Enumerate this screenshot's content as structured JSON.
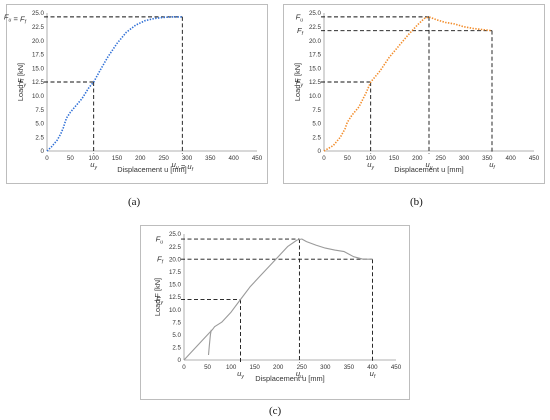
{
  "chart_data": [
    {
      "type": "line",
      "xlabel": "Displacement u [mm]",
      "ylabel": "Load F [kN]",
      "xlim": [
        0,
        450
      ],
      "ylim": [
        0,
        25
      ],
      "xticks": [
        "0",
        "50",
        "100",
        "150",
        "200",
        "250",
        "300",
        "350",
        "400",
        "450"
      ],
      "yticks": [
        "0",
        "2.5",
        "5.0",
        "7.5",
        "10.0",
        "12.5",
        "15.0",
        "17.5",
        "20.0",
        "22.5",
        "25.0"
      ],
      "line_color": "#2f6fd6",
      "line_style": "dotted",
      "series": [
        {
          "x": [
            0,
            10,
            22,
            30,
            35,
            38,
            42,
            50,
            60,
            75,
            90,
            100,
            115,
            130,
            150,
            170,
            190,
            210,
            230,
            250,
            270,
            290
          ],
          "y": [
            0,
            0.8,
            2.0,
            3.2,
            4.2,
            5.0,
            6.0,
            7.0,
            8.0,
            9.5,
            11.5,
            12.5,
            14.8,
            17.0,
            19.5,
            21.5,
            22.8,
            23.6,
            24.0,
            24.2,
            24.3,
            24.3
          ]
        }
      ],
      "refs": {
        "Fy": 12.5,
        "uy": 100,
        "Fu": 24.3,
        "uu": 290
      },
      "markers": {
        "y": [
          {
            "value": 24.3,
            "parts": [
              {
                "t": "F",
                "s": "u"
              },
              {
                "t": " = F",
                "s": ""
              },
              {
                "t": "",
                "s": "f"
              }
            ]
          },
          {
            "value": 12.5,
            "parts": [
              {
                "t": "F",
                "s": "y"
              }
            ]
          }
        ],
        "x": [
          {
            "value": 100,
            "parts": [
              {
                "t": "u",
                "s": "y"
              }
            ]
          },
          {
            "value": 290,
            "parts": [
              {
                "t": "u",
                "s": "u"
              },
              {
                "t": " = u",
                "s": "f"
              }
            ]
          }
        ]
      },
      "caption": "(a)"
    },
    {
      "type": "line",
      "xlabel": "Displacement u [mm]",
      "ylabel": "Load F [kN]",
      "xlim": [
        0,
        450
      ],
      "ylim": [
        0,
        25
      ],
      "xticks": [
        "0",
        "50",
        "100",
        "150",
        "200",
        "250",
        "300",
        "350",
        "400",
        "450"
      ],
      "yticks": [
        "0",
        "2.5",
        "5.0",
        "7.5",
        "10.0",
        "12.5",
        "15.0",
        "17.5",
        "20.0",
        "22.5",
        "25.0"
      ],
      "line_color": "#f28c2a",
      "line_style": "dotted",
      "series": [
        {
          "x": [
            0,
            20,
            35,
            45,
            50,
            60,
            75,
            90,
            100,
            120,
            140,
            160,
            180,
            200,
            215,
            225,
            240,
            260,
            280,
            300,
            320,
            340,
            360
          ],
          "y": [
            0,
            1.0,
            2.5,
            4.0,
            5.2,
            6.5,
            8.0,
            10.5,
            12.5,
            14.5,
            17.0,
            19.0,
            21.0,
            22.8,
            24.0,
            24.3,
            23.8,
            23.3,
            23.0,
            22.5,
            22.2,
            22.0,
            21.8
          ]
        }
      ],
      "refs": {
        "Fy": 12.5,
        "uy": 100,
        "Fu": 24.3,
        "uu": 225,
        "Ff": 21.8,
        "uf": 360
      },
      "markers": {
        "y": [
          {
            "value": 24.3,
            "parts": [
              {
                "t": "F",
                "s": "u"
              }
            ]
          },
          {
            "value": 21.8,
            "parts": [
              {
                "t": "F",
                "s": "f"
              }
            ]
          },
          {
            "value": 12.5,
            "parts": [
              {
                "t": "F",
                "s": "y"
              }
            ]
          }
        ],
        "x": [
          {
            "value": 100,
            "parts": [
              {
                "t": "u",
                "s": "y"
              }
            ]
          },
          {
            "value": 225,
            "parts": [
              {
                "t": "u",
                "s": "u"
              }
            ]
          },
          {
            "value": 360,
            "parts": [
              {
                "t": "u",
                "s": "f"
              }
            ]
          }
        ]
      },
      "caption": "(b)"
    },
    {
      "type": "line",
      "xlabel": "Displacement u [mm]",
      "ylabel": "Load F [kN]",
      "xlim": [
        0,
        450
      ],
      "ylim": [
        0,
        25
      ],
      "xticks": [
        "0",
        "50",
        "100",
        "150",
        "200",
        "250",
        "300",
        "350",
        "400",
        "450"
      ],
      "yticks": [
        "0",
        "2.5",
        "5.0",
        "7.5",
        "10.0",
        "12.5",
        "15.0",
        "17.5",
        "20.0",
        "22.5",
        "25.0"
      ],
      "line_color": "#9a9a9a",
      "line_style": "solid",
      "series": [
        {
          "x": [
            0,
            15,
            30,
            45,
            55,
            60,
            65,
            80,
            100,
            120,
            140,
            160,
            180,
            200,
            220,
            240,
            250,
            260,
            280,
            300,
            320,
            340,
            360,
            380,
            400
          ],
          "y": [
            0,
            1.5,
            3.0,
            4.5,
            5.5,
            6.0,
            6.6,
            7.5,
            9.5,
            12.0,
            14.5,
            16.5,
            18.5,
            20.5,
            22.5,
            23.8,
            24.0,
            23.5,
            22.8,
            22.2,
            21.8,
            21.5,
            20.5,
            20.0,
            20.0
          ]
        },
        {
          "x": [
            52,
            54,
            56,
            58
          ],
          "y": [
            1.0,
            3.0,
            5.0,
            6.0
          ]
        }
      ],
      "refs": {
        "Fy": 12.0,
        "uy": 120,
        "Fu": 24.0,
        "uu": 245,
        "Ff": 20.0,
        "uf": 400
      },
      "markers": {
        "y": [
          {
            "value": 24.0,
            "parts": [
              {
                "t": "F",
                "s": "u"
              }
            ]
          },
          {
            "value": 20.0,
            "parts": [
              {
                "t": "F",
                "s": "f"
              }
            ]
          },
          {
            "value": 12.0,
            "parts": [
              {
                "t": "F",
                "s": "y"
              }
            ]
          }
        ],
        "x": [
          {
            "value": 120,
            "parts": [
              {
                "t": "u",
                "s": "y"
              }
            ]
          },
          {
            "value": 245,
            "parts": [
              {
                "t": "u",
                "s": "u"
              }
            ]
          },
          {
            "value": 400,
            "parts": [
              {
                "t": "u",
                "s": "f"
              }
            ]
          }
        ]
      },
      "caption": "(c)"
    }
  ]
}
